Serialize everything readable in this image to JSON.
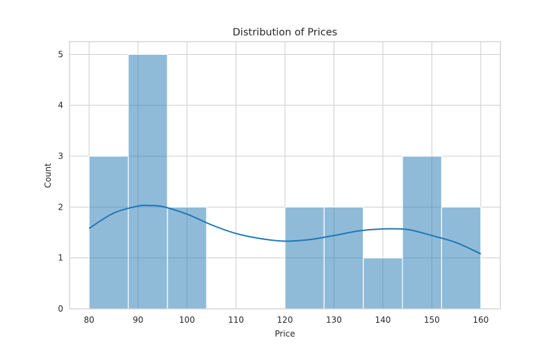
{
  "chart_data": {
    "type": "bar",
    "title": "Distribution of Prices",
    "xlabel": "Price",
    "ylabel": "Count",
    "xlim": [
      76.0,
      164.0
    ],
    "ylim": [
      0,
      5.25
    ],
    "x_ticks": [
      80,
      90,
      100,
      110,
      120,
      130,
      140,
      150,
      160
    ],
    "y_ticks": [
      0,
      1,
      2,
      3,
      4,
      5
    ],
    "grid": true,
    "bins": [
      {
        "start": 80,
        "end": 88,
        "count": 3
      },
      {
        "start": 88,
        "end": 96,
        "count": 5
      },
      {
        "start": 96,
        "end": 104,
        "count": 2
      },
      {
        "start": 104,
        "end": 112,
        "count": 0
      },
      {
        "start": 112,
        "end": 120,
        "count": 0
      },
      {
        "start": 120,
        "end": 128,
        "count": 2
      },
      {
        "start": 128,
        "end": 136,
        "count": 2
      },
      {
        "start": 136,
        "end": 144,
        "count": 1
      },
      {
        "start": 144,
        "end": 152,
        "count": 3
      },
      {
        "start": 152,
        "end": 160,
        "count": 2
      }
    ],
    "kde": {
      "x": [
        80,
        85,
        90,
        92,
        95,
        100,
        105,
        110,
        115,
        120,
        125,
        130,
        135,
        140,
        145,
        150,
        155,
        160
      ],
      "y": [
        1.58,
        1.88,
        2.02,
        2.03,
        2.01,
        1.86,
        1.65,
        1.48,
        1.38,
        1.33,
        1.36,
        1.44,
        1.53,
        1.57,
        1.56,
        1.44,
        1.3,
        1.08
      ]
    },
    "colors": {
      "bar": "#1f77b4",
      "kde": "#1f77b4",
      "grid": "#cccccc"
    }
  }
}
